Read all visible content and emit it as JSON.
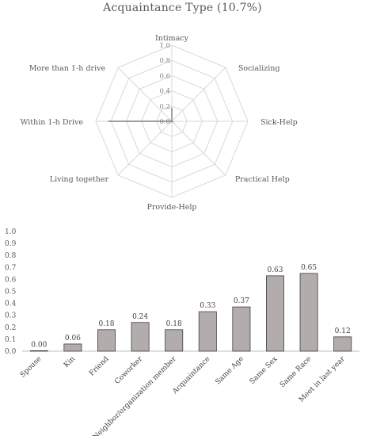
{
  "chart_data": [
    {
      "type": "radar",
      "title": "Acquaintance Type (10.7%)",
      "axes": [
        "Intimacy",
        "Socializing",
        "Sick-Help",
        "Practical Help",
        "Provide-Help",
        "Living together",
        "Within 1-h Drive",
        "More than 1-h drive"
      ],
      "values": [
        0.18,
        0.0,
        0.0,
        0.02,
        0.0,
        0.0,
        0.84,
        0.0
      ],
      "rlim": [
        0,
        1.0
      ],
      "ticks": [
        "0.0",
        "0.2",
        "0.4",
        "0.6",
        "0.8",
        "1.0"
      ],
      "grid": true,
      "line_color": "#808080"
    },
    {
      "type": "bar",
      "categories": [
        "Spouse",
        "Kin",
        "Friend",
        "Coworker",
        "Neighbor/organization member",
        "Acquaintance",
        "Same Age",
        "Same Sex",
        "Same Race",
        "Meet in last year"
      ],
      "values": [
        0.0,
        0.06,
        0.18,
        0.24,
        0.18,
        0.33,
        0.37,
        0.63,
        0.65,
        0.12
      ],
      "value_labels": [
        "0.00",
        "0.06",
        "0.18",
        "0.24",
        "0.18",
        "0.33",
        "0.37",
        "0.63",
        "0.65",
        "0.12"
      ],
      "ylim": [
        0,
        1.0
      ],
      "yticks": [
        "0.0",
        "0.1",
        "0.2",
        "0.3",
        "0.4",
        "0.5",
        "0.6",
        "0.7",
        "0.8",
        "0.9",
        "1.0"
      ],
      "grid": false,
      "bar_color": "#b3acac"
    }
  ]
}
